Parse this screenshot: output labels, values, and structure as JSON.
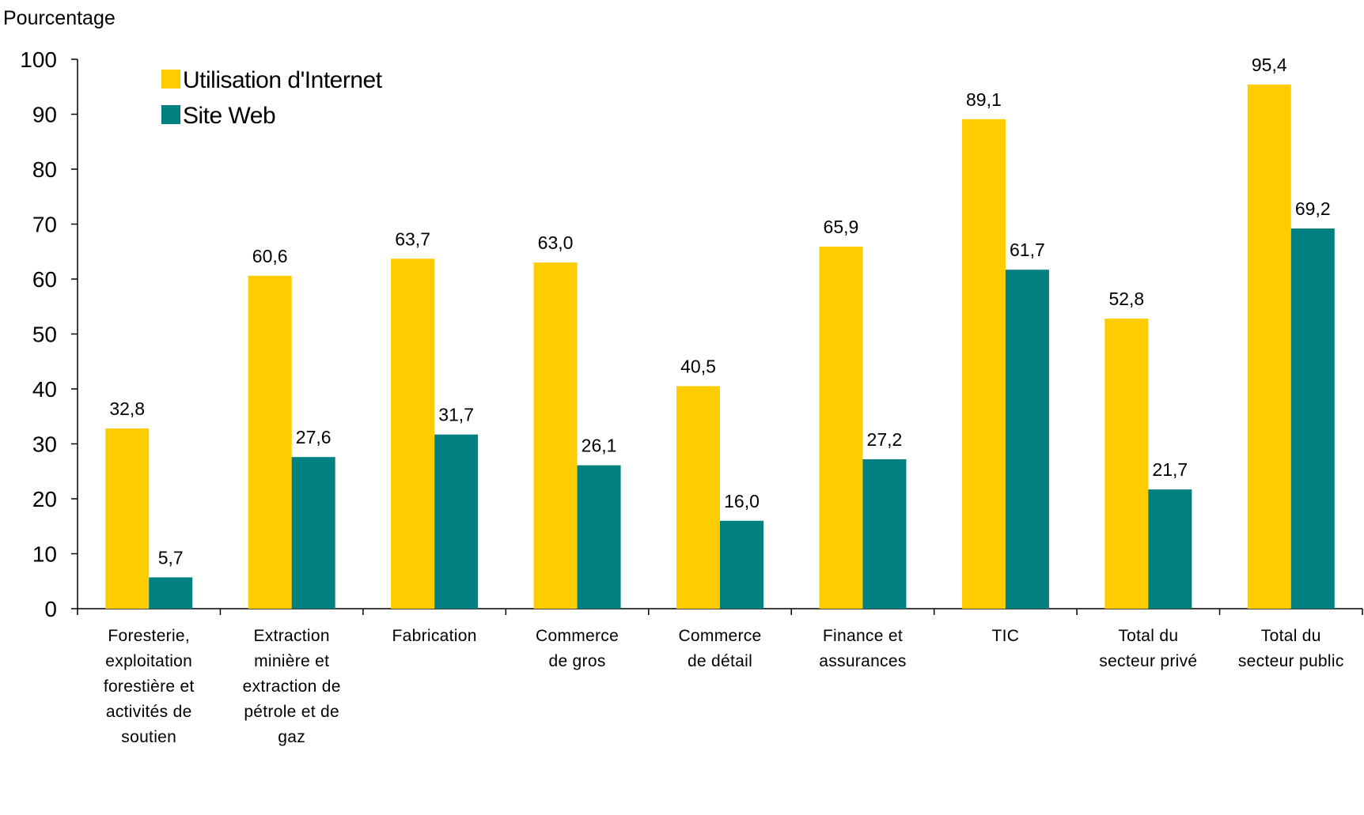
{
  "chart_data": {
    "type": "bar",
    "title": "",
    "ylabel": "Pourcentage",
    "xlabel": "",
    "ylim": [
      0,
      100
    ],
    "yticks": [
      0,
      10,
      20,
      30,
      40,
      50,
      60,
      70,
      80,
      90,
      100
    ],
    "grid": false,
    "legend_position": "top-left",
    "categories": [
      "Foresterie, exploitation forestière et activités de soutien",
      "Extraction minière et extraction de pétrole et de gaz",
      "Fabrication",
      "Commerce de gros",
      "Commerce de détail",
      "Finance et assurances",
      "TIC",
      "Total du secteur privé",
      "Total du secteur public"
    ],
    "category_lines": [
      [
        "Foresterie,",
        "exploitation",
        "forestière et",
        "activités de",
        "soutien"
      ],
      [
        "Extraction",
        "minière et",
        "extraction de",
        "pétrole et de",
        "gaz"
      ],
      [
        "Fabrication"
      ],
      [
        "Commerce",
        "de gros"
      ],
      [
        "Commerce",
        "de détail"
      ],
      [
        "Finance et",
        "assurances"
      ],
      [
        "TIC"
      ],
      [
        "Total du",
        "secteur privé"
      ],
      [
        "Total du",
        "secteur public"
      ]
    ],
    "series": [
      {
        "name": "Utilisation d'Internet",
        "color": "#FFCC00",
        "values": [
          32.8,
          60.6,
          63.7,
          63.0,
          40.5,
          65.9,
          89.1,
          52.8,
          95.4
        ],
        "labels": [
          "32,8",
          "60,6",
          "63,7",
          "63,0",
          "40,5",
          "65,9",
          "89,1",
          "52,8",
          "95,4"
        ]
      },
      {
        "name": "Site Web",
        "color": "#008080",
        "values": [
          5.7,
          27.6,
          31.7,
          26.1,
          16.0,
          27.2,
          61.7,
          21.7,
          69.2
        ],
        "labels": [
          "5,7",
          "27,6",
          "31,7",
          "26,1",
          "16,0",
          "27,2",
          "61,7",
          "21,7",
          "69,2"
        ]
      }
    ]
  }
}
